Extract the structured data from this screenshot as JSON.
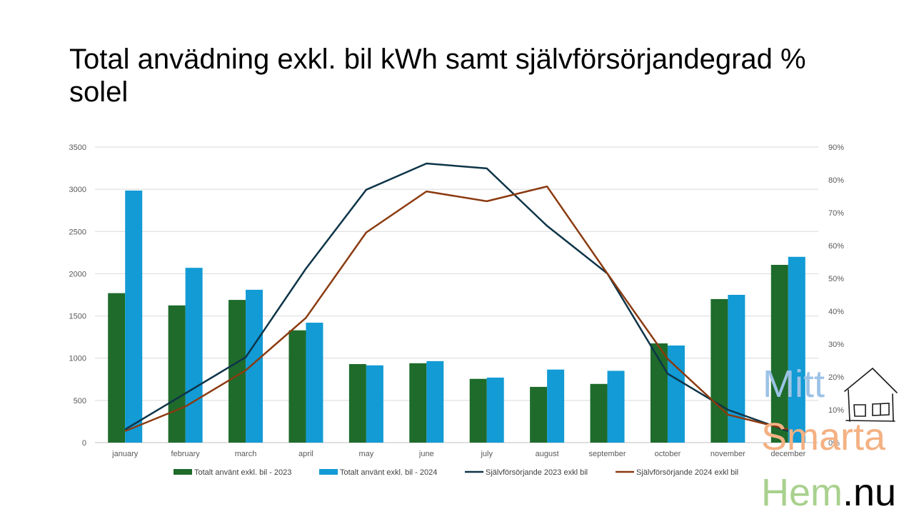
{
  "slide": {
    "title": "Total anvädning exkl. bil kWh samt självförsörjandegrad % solel"
  },
  "logo": {
    "line1": "Mitt",
    "line2": "Smarta",
    "line3": "Hem",
    "line4": ".nu",
    "colors": {
      "line1": "#9dc3e6",
      "line2": "#f4b183",
      "line3": "#a9d18e",
      "line4": "#000000"
    }
  },
  "chart_data": {
    "type": "bar",
    "categories": [
      "january",
      "february",
      "march",
      "april",
      "may",
      "june",
      "july",
      "august",
      "september",
      "october",
      "november",
      "december"
    ],
    "y_left": {
      "ylim": [
        0,
        3500
      ],
      "ticks": [
        "0",
        "500",
        "1000",
        "1500",
        "2000",
        "2500",
        "3000",
        "3500"
      ]
    },
    "y_right": {
      "ylim": [
        0,
        90
      ],
      "ticks": [
        "0%",
        "10%",
        "20%",
        "30%",
        "40%",
        "50%",
        "60%",
        "70%",
        "80%",
        "90%"
      ]
    },
    "grid": true,
    "legend_position": "bottom",
    "series": [
      {
        "name": "Totalt använt exkl. bil - 2023",
        "type": "bar",
        "axis": "left",
        "color": "#1e6b2b",
        "values": [
          1770,
          1625,
          1690,
          1330,
          930,
          940,
          755,
          660,
          695,
          1175,
          1700,
          2105
        ]
      },
      {
        "name": "Totalt använt exkl. bil - 2024",
        "type": "bar",
        "axis": "left",
        "color": "#129bd5",
        "values": [
          2985,
          2070,
          1810,
          1420,
          915,
          965,
          770,
          865,
          850,
          1150,
          1750,
          2200
        ]
      },
      {
        "name": "Självförsörjande 2023 exkl bil",
        "type": "line",
        "axis": "right",
        "color": "#0e3448",
        "values": [
          4,
          15,
          26,
          53,
          77,
          85,
          83.5,
          66,
          51.5,
          21,
          10,
          3.5
        ]
      },
      {
        "name": "Självförsörjande 2024 exkl bil",
        "type": "line",
        "axis": "right",
        "color": "#8b3a10",
        "values": [
          3.5,
          11,
          22,
          38,
          64,
          76.5,
          73.5,
          78,
          51.5,
          25.5,
          8.5,
          4
        ]
      }
    ]
  }
}
